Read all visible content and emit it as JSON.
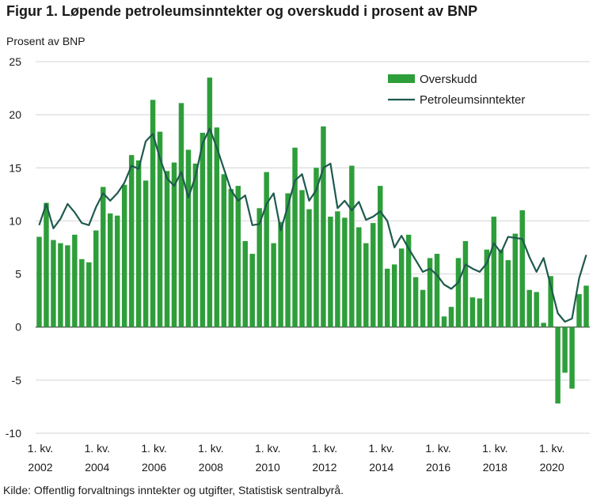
{
  "chart_data": {
    "type": "bar",
    "title": "Figur 1. Løpende petroleumsinntekter og overskudd i prosent av BNP",
    "ylabel": "Prosent av BNP",
    "xlabel": "",
    "source": "Kilde: Offentlig forvaltnings inntekter og utgifter, Statistisk sentralbyrå.",
    "ylim": [
      -10,
      25
    ],
    "yticks": [
      -10,
      -5,
      0,
      5,
      10,
      15,
      20,
      25
    ],
    "grid": true,
    "legend_position": "top-right",
    "start": "2002 Q1",
    "xticks": [
      {
        "line1": "1. kv.",
        "line2": "2002",
        "index": 0
      },
      {
        "line1": "1. kv.",
        "line2": "2004",
        "index": 8
      },
      {
        "line1": "1. kv.",
        "line2": "2006",
        "index": 16
      },
      {
        "line1": "1. kv.",
        "line2": "2008",
        "index": 24
      },
      {
        "line1": "1. kv.",
        "line2": "2010",
        "index": 32
      },
      {
        "line1": "1. kv.",
        "line2": "2012",
        "index": 40
      },
      {
        "line1": "1. kv.",
        "line2": "2014",
        "index": 48
      },
      {
        "line1": "1. kv.",
        "line2": "2016",
        "index": 56
      },
      {
        "line1": "1. kv.",
        "line2": "2018",
        "index": 64
      },
      {
        "line1": "1. kv.",
        "line2": "2020",
        "index": 72
      }
    ],
    "series": [
      {
        "name": "Overskudd",
        "type": "bar",
        "color": "#2e9e3a",
        "values": [
          8.5,
          11.7,
          8.2,
          7.9,
          7.7,
          8.7,
          6.4,
          6.1,
          9.1,
          13.2,
          10.7,
          10.5,
          13.4,
          16.2,
          15.7,
          13.8,
          21.4,
          18.4,
          14.7,
          15.5,
          21.1,
          16.7,
          15.4,
          18.3,
          23.5,
          18.8,
          14.4,
          13.0,
          13.3,
          8.1,
          6.9,
          11.2,
          14.6,
          7.9,
          9.9,
          12.6,
          16.9,
          12.9,
          11.1,
          15.0,
          18.9,
          10.4,
          10.9,
          10.3,
          15.2,
          9.4,
          7.9,
          9.8,
          13.3,
          5.5,
          5.9,
          7.4,
          8.7,
          4.7,
          3.5,
          6.5,
          6.9,
          1.0,
          1.9,
          6.5,
          8.1,
          2.8,
          2.7,
          7.3,
          10.4,
          7.3,
          6.3,
          8.8,
          11.0,
          3.5,
          3.3,
          0.4,
          4.8,
          -7.2,
          -4.3,
          -5.8,
          3.1,
          3.9
        ]
      },
      {
        "name": "Petroleumsinntekter",
        "type": "line",
        "color": "#1f5a4e",
        "values": [
          9.6,
          11.6,
          9.3,
          10.2,
          11.6,
          10.8,
          9.8,
          9.6,
          11.3,
          12.6,
          11.9,
          12.6,
          13.6,
          15.2,
          14.9,
          17.5,
          18.2,
          15.9,
          14.0,
          13.3,
          14.6,
          12.2,
          14.2,
          17.3,
          18.7,
          16.9,
          14.9,
          12.9,
          11.9,
          12.4,
          9.6,
          9.7,
          11.6,
          12.6,
          9.1,
          11.4,
          13.8,
          14.4,
          11.9,
          12.9,
          15.0,
          15.4,
          11.2,
          11.9,
          11.0,
          11.8,
          10.1,
          10.4,
          10.9,
          10.0,
          7.5,
          8.6,
          7.4,
          6.3,
          5.2,
          5.5,
          4.9,
          4.0,
          3.6,
          4.2,
          5.9,
          5.5,
          5.2,
          6.0,
          7.9,
          7.0,
          8.5,
          8.4,
          8.3,
          6.6,
          5.2,
          6.5,
          3.9,
          1.3,
          0.5,
          0.8,
          4.6,
          6.8
        ]
      }
    ]
  }
}
